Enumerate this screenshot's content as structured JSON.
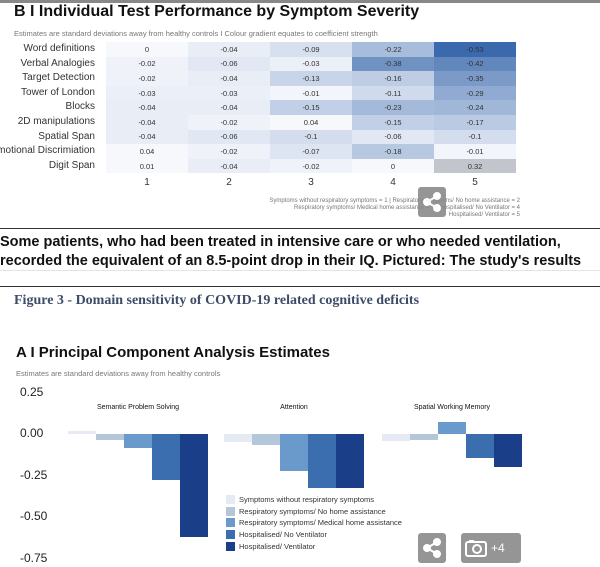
{
  "chart_data": [
    {
      "type": "heatmap",
      "title": "B I Individual Test Performance by Symptom Severity",
      "subtitle": "Estimates are standard deviations away from healthy controls I Colour gradient equates to coefficient strength",
      "rows": [
        "Word definitions",
        "Verbal Analogies",
        "Target Detection",
        "Tower of London",
        "Blocks",
        "2D manipulations",
        "Spatial Span",
        "Emotional Discrimiation",
        "Digit Span"
      ],
      "columns": [
        "1",
        "2",
        "3",
        "4",
        "5"
      ],
      "values": [
        [
          0,
          -0.04,
          -0.09,
          -0.22,
          -0.53
        ],
        [
          -0.02,
          -0.06,
          -0.03,
          -0.38,
          -0.42
        ],
        [
          -0.02,
          -0.04,
          -0.13,
          -0.16,
          -0.35
        ],
        [
          -0.03,
          -0.03,
          -0.01,
          -0.11,
          -0.29
        ],
        [
          -0.04,
          -0.04,
          -0.15,
          -0.23,
          -0.24
        ],
        [
          -0.04,
          -0.02,
          0.04,
          -0.15,
          -0.17
        ],
        [
          -0.04,
          -0.06,
          -0.1,
          -0.06,
          -0.1
        ],
        [
          0.04,
          -0.02,
          -0.07,
          -0.18,
          -0.01
        ],
        [
          0.01,
          -0.04,
          -0.02,
          0,
          0.32
        ]
      ],
      "footnote": [
        "Symptoms without respiratory symptoms = 1 | Respiratory symptoms/ No home assistance = 2",
        "Respiratory symptoms/ Medical home assistance = 3 | Hospitalised/ No Ventilator = 4",
        "Hospitalised/ Ventilator = 5"
      ]
    },
    {
      "type": "bar",
      "title": "A I Principal Component Analysis Estimates",
      "subtitle": "Estimates are standard deviations away from healthy controls",
      "categories": [
        "Semantic Problem Solving",
        "Attention",
        "Spatial Working Memory"
      ],
      "yticks": [
        "0.25",
        "0.00",
        "-0.25",
        "-0.50",
        "-0.75"
      ],
      "ylim": [
        -0.75,
        0.25
      ],
      "series": [
        {
          "name": "Symptoms without respiratory symptoms",
          "color": "#e6eaf4",
          "values": [
            0.02,
            -0.05,
            -0.04
          ]
        },
        {
          "name": "Respiratory symptoms/ No home assistance",
          "color": "#b4c6d9",
          "values": [
            -0.035,
            -0.065,
            -0.035
          ]
        },
        {
          "name": "Respiratory symptoms/ Medical home assistance",
          "color": "#6a9acb",
          "values": [
            -0.085,
            -0.22,
            0.07
          ]
        },
        {
          "name": "Hospitalised/ No Ventilator",
          "color": "#3b6eaf",
          "values": [
            -0.28,
            -0.325,
            -0.145
          ]
        },
        {
          "name": "Hospitalised/ Ventilator",
          "color": "#1b3e89",
          "values": [
            -0.62,
            -0.325,
            -0.2
          ]
        }
      ]
    }
  ],
  "caption": "Some patients, who had been treated in intensive care or who needed ventilation, recorded the equivalent of an 8.5-point drop in their IQ. Pictured: The study's results",
  "figure_title": "Figure 3 - Domain sensitivity of COVID-19 related cognitive deficits",
  "gallery": {
    "photo_count": "+4",
    "share_icon": "share-icon",
    "camera_icon": "camera-icon"
  }
}
